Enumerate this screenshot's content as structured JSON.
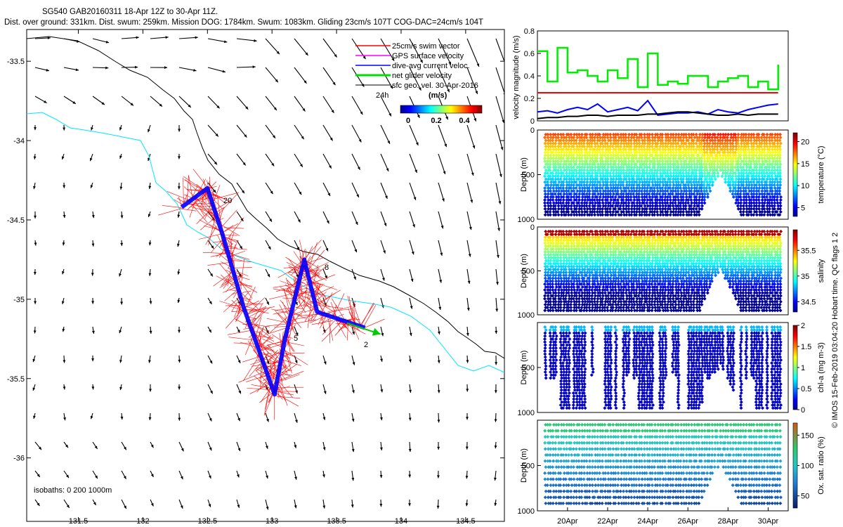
{
  "title": {
    "line1": "SG540 GAB20160311 18-Apr 12Z to 30-Apr 11Z.",
    "line2": "Dist. over ground: 331km. Dist. swum: 259km. Mission DOG: 1784km. Swum: 1083km. Gliding 23cm/s 107T COG-DAC=24cm/s 104T"
  },
  "map": {
    "legend": [
      {
        "label": "25cm/s swim vector",
        "color": "#ff0000"
      },
      {
        "label": "GPS surface velocity",
        "color": "#ff00ff"
      },
      {
        "label": "dive-avg current veloc.",
        "color": "#0000ff"
      },
      {
        "label": "net glider velocity",
        "color": "#00dd00"
      },
      {
        "label": "sfc geo. vel. 30-Apr-2016",
        "color": "#000000"
      }
    ],
    "legend_24h": "24h",
    "colorbar_units": "(m/s)",
    "colorbar_ticks": [
      "0",
      "0.2",
      "0.4"
    ],
    "isobaths_label": "isobaths: 0   200  1000m",
    "waypoint_labels": [
      "20",
      "5",
      "8",
      "2"
    ],
    "colors": {
      "coast": "#00e5ff",
      "isobath": "#000000",
      "track": "#0000ff",
      "swim": "#ff0000",
      "net": "#00cc00"
    }
  },
  "side_labels": {
    "velocity_ylabel": "velocity magnitude (m/s)",
    "depth_label": "Depth (m)",
    "watermark": "© IMOS 15-Feb-2019 03:04:20 Hobart time. QC flags 1  2"
  },
  "chart_data": [
    {
      "type": "quiver-map",
      "xlim": [
        131.1,
        134.8
      ],
      "ylim": [
        -36.4,
        -33.3
      ],
      "x_ticks": [
        "131.5",
        "132",
        "132.5",
        "133",
        "133.5",
        "134",
        "134.5"
      ],
      "x_tick_values": [
        131.5,
        132,
        132.5,
        133,
        133.5,
        134,
        134.5
      ],
      "y_ticks": [
        "-33.5",
        "-34",
        "-34.5",
        "-35",
        "-35.5",
        "-36"
      ],
      "y_tick_values": [
        -33.5,
        -34,
        -34.5,
        -35,
        -35.5,
        -36
      ],
      "track": [
        [
          132.3,
          -34.42
        ],
        [
          132.5,
          -34.3
        ],
        [
          132.62,
          -34.6
        ],
        [
          132.78,
          -35.05
        ],
        [
          133.02,
          -35.6
        ],
        [
          133.1,
          -35.25
        ],
        [
          133.25,
          -34.75
        ],
        [
          133.35,
          -35.08
        ],
        [
          133.72,
          -35.18
        ]
      ],
      "net_vector": [
        [
          133.58,
          -35.15
        ],
        [
          133.84,
          -35.22
        ]
      ]
    },
    {
      "type": "line",
      "ylabel": "velocity magnitude (m/s)",
      "ylim": [
        0,
        0.8
      ],
      "y_ticks": [
        "0",
        "0.2",
        "0.4",
        "0.6",
        "0.8"
      ],
      "x": [
        18.5,
        19,
        19.5,
        20,
        20.5,
        21,
        21.5,
        22,
        22.5,
        23,
        23.5,
        24,
        24.5,
        25,
        25.5,
        26,
        26.5,
        27,
        27.5,
        28,
        28.5,
        29,
        29.5,
        30,
        30.5
      ],
      "series": [
        {
          "name": "swim 25cm/s",
          "color": "#ff0000",
          "values": [
            0.25,
            0.25,
            0.25,
            0.25,
            0.25,
            0.25,
            0.25,
            0.25,
            0.25,
            0.25,
            0.25,
            0.25,
            0.25,
            0.25,
            0.25,
            0.25,
            0.25,
            0.25,
            0.25,
            0.25,
            0.25,
            0.25,
            0.25,
            0.25,
            0.25
          ]
        },
        {
          "name": "net glider velocity",
          "color": "#00ee00",
          "values": [
            0.62,
            0.35,
            0.65,
            0.43,
            0.45,
            0.4,
            0.35,
            0.45,
            0.38,
            0.55,
            0.3,
            0.6,
            0.32,
            0.35,
            0.33,
            0.4,
            0.4,
            0.3,
            0.35,
            0.38,
            0.4,
            0.3,
            0.35,
            0.28,
            0.5
          ]
        },
        {
          "name": "dive-avg current",
          "color": "#0000ff",
          "values": [
            0.08,
            0.09,
            0.07,
            0.1,
            0.12,
            0.1,
            0.15,
            0.08,
            0.1,
            0.12,
            0.09,
            0.18,
            0.05,
            0.06,
            0.07,
            0.07,
            0.08,
            0.06,
            0.1,
            0.08,
            0.07,
            0.1,
            0.12,
            0.14,
            0.15
          ]
        },
        {
          "name": "sfc geo. vel.",
          "color": "#000000",
          "values": [
            0.02,
            0.03,
            0.03,
            0.04,
            0.04,
            0.05,
            0.05,
            0.04,
            0.05,
            0.05,
            0.05,
            0.06,
            0.06,
            0.07,
            0.08,
            0.08,
            0.07,
            0.06,
            0.05,
            0.05,
            0.06,
            0.05,
            0.06,
            0.06,
            0.06
          ]
        }
      ]
    },
    {
      "type": "scatter-section",
      "variable": "temperature",
      "cbar_label": "temperature (°C)",
      "y_ticks": [
        "0",
        "500",
        "1000"
      ],
      "cbar_ticks": [
        "5",
        "10",
        "15",
        "20"
      ],
      "clim": [
        3,
        22
      ]
    },
    {
      "type": "scatter-section",
      "variable": "salinity",
      "cbar_label": "salinity",
      "y_ticks": [
        "0",
        "500",
        "1000"
      ],
      "cbar_ticks": [
        "34.5",
        "35",
        "35.5"
      ],
      "clim": [
        34.3,
        35.9
      ]
    },
    {
      "type": "scatter-section",
      "variable": "chl-a",
      "cbar_label": "chl-a (mg m-3)",
      "y_ticks": [
        "500",
        "1000"
      ],
      "cbar_ticks": [
        "0",
        "0.5",
        "1",
        "1.5",
        "2"
      ],
      "clim": [
        0,
        2
      ]
    },
    {
      "type": "scatter-section",
      "variable": "oxygen",
      "cbar_label": "Ox. sat. ratio (%)",
      "y_ticks": [
        "500",
        "1000"
      ],
      "cbar_ticks": [
        "50",
        "100",
        "150"
      ],
      "clim": [
        30,
        170
      ],
      "x_ticks": [
        "20Apr",
        "22Apr",
        "24Apr",
        "26Apr",
        "28Apr",
        "30Apr"
      ],
      "x_tick_values": [
        20,
        22,
        24,
        26,
        28,
        30
      ],
      "xlim": [
        18.5,
        31
      ]
    }
  ]
}
